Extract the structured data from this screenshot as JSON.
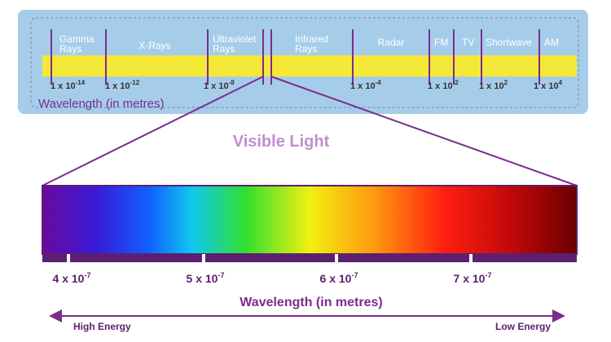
{
  "spectrum": {
    "bands": [
      [
        "Gamma",
        "Rays"
      ],
      [
        "X-Rays"
      ],
      [
        "Ultraviolet",
        "Rays"
      ],
      [
        "Infrared",
        "Rays"
      ],
      [
        "Radar"
      ],
      [
        "FM"
      ],
      [
        "TV"
      ],
      [
        "Shortwave"
      ],
      [
        "AM"
      ]
    ],
    "wavelengths": [
      {
        "base": "1 x 10",
        "exponent": "-14"
      },
      {
        "base": "1 x 10",
        "exponent": "-12"
      },
      {
        "base": "1 x 10",
        "exponent": "-8"
      },
      {
        "base": "1 x 10",
        "exponent": "-4"
      },
      {
        "base": "1 x 10",
        "exponent": "-2"
      },
      {
        "base": "1 x 10",
        "exponent": "2"
      },
      {
        "base": "1 x 10",
        "exponent": "4"
      }
    ],
    "axis_label": "Wavelength (in metres)"
  },
  "visible_light": {
    "title": "Visible Light",
    "wavelengths": [
      {
        "base": "4 x 10",
        "exponent": "-7"
      },
      {
        "base": "5 x 10",
        "exponent": "-7"
      },
      {
        "base": "6 x 10",
        "exponent": "-7"
      },
      {
        "base": "7 x 10",
        "exponent": "-7"
      }
    ],
    "axis_label": "Wavelength (in metres)",
    "energy": {
      "high": "High Energy",
      "low": "Low Energy"
    }
  }
}
